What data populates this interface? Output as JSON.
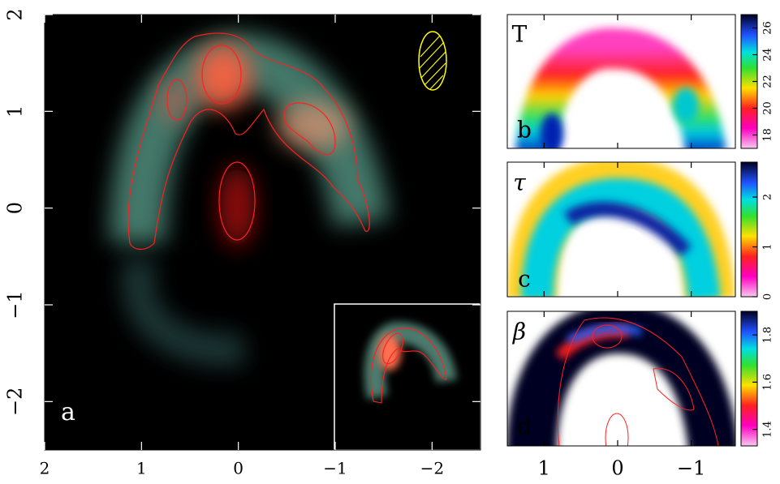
{
  "chart_data": [
    {
      "type": "image",
      "label": "a",
      "xlim": [
        2,
        -2.5
      ],
      "ylim": [
        -2.5,
        2
      ],
      "xticks": [
        2,
        1,
        0,
        {
          "value": -1,
          "label": "−1"
        },
        {
          "value": -2,
          "label": "−2"
        }
      ],
      "yticks": [
        {
          "value": -2,
          "label": "−2"
        },
        {
          "value": -1,
          "label": "−1"
        },
        0,
        1,
        2
      ]
    },
    {
      "type": "image",
      "title": "T",
      "label": "b",
      "xlim": [
        1.5,
        -1.6
      ],
      "xticks": [
        1,
        0,
        -1
      ],
      "colorbar": {
        "lim": [
          17,
          27
        ],
        "ticks": [
          18,
          20,
          22,
          24,
          26
        ]
      }
    },
    {
      "type": "image",
      "title": "τ",
      "label": "c",
      "xlim": [
        1.5,
        -1.6
      ],
      "xticks": [
        1,
        0,
        -1
      ],
      "colorbar": {
        "lim": [
          0,
          2.7
        ],
        "ticks": [
          0,
          1,
          2
        ]
      }
    },
    {
      "type": "image",
      "title": "β",
      "label": "d",
      "xlim": [
        1.5,
        -1.6
      ],
      "xticks": [
        1,
        0,
        {
          "value": -1,
          "label": "−1"
        }
      ],
      "colorbar": {
        "lim": [
          1.33,
          1.9
        ],
        "ticks": [
          1.4,
          1.6,
          1.8
        ]
      }
    }
  ]
}
